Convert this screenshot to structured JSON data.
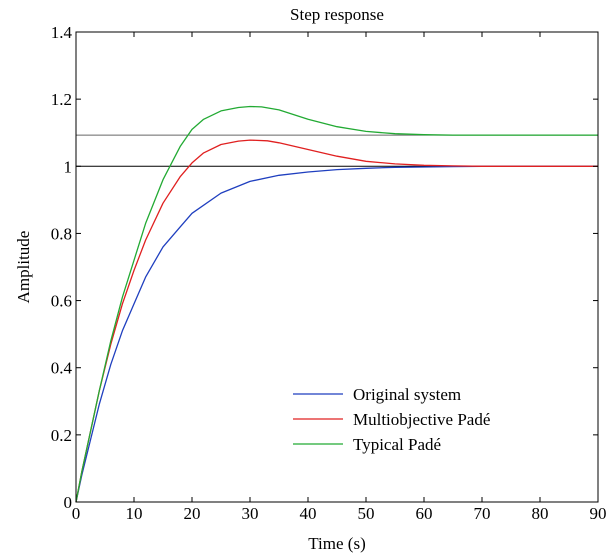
{
  "chart_data": {
    "type": "line",
    "title": "Step response",
    "xlabel": "Time (s)",
    "ylabel": "Amplitude",
    "xlim": [
      0,
      90
    ],
    "ylim": [
      0,
      1.4
    ],
    "xticks": [
      0,
      10,
      20,
      30,
      40,
      50,
      60,
      70,
      80,
      90
    ],
    "yticks": [
      0,
      0.2,
      0.4,
      0.6,
      0.8,
      1,
      1.2,
      1.4
    ],
    "xtick_labels": [
      "0",
      "10",
      "20",
      "30",
      "40",
      "50",
      "60",
      "70",
      "80",
      "90"
    ],
    "ytick_labels": [
      "0",
      "0.2",
      "0.4",
      "0.6",
      "0.8",
      "1",
      "1.2",
      "1.4"
    ],
    "grid": false,
    "legend_position": "bottom-center",
    "reference_lines": [
      {
        "y": 1.0,
        "color": "#000000"
      },
      {
        "y": 1.093,
        "color": "#666666"
      }
    ],
    "series": [
      {
        "name": "Original system",
        "color": "#1f3fbf",
        "x": [
          0,
          1,
          2,
          4,
          6,
          8,
          10,
          12,
          15,
          18,
          20,
          25,
          30,
          35,
          40,
          45,
          50,
          55,
          60,
          65,
          70,
          80,
          90
        ],
        "y": [
          0,
          0.08,
          0.15,
          0.29,
          0.41,
          0.51,
          0.59,
          0.67,
          0.76,
          0.82,
          0.86,
          0.92,
          0.955,
          0.973,
          0.983,
          0.99,
          0.994,
          0.997,
          0.998,
          0.999,
          1.0,
          1.0,
          1.0
        ]
      },
      {
        "name": "Multiobjective Padé",
        "color": "#e02020",
        "x": [
          0,
          1,
          2,
          4,
          6,
          8,
          10,
          12,
          15,
          18,
          20,
          22,
          25,
          28,
          30,
          33,
          35,
          40,
          45,
          50,
          55,
          60,
          65,
          70,
          80,
          90
        ],
        "y": [
          0,
          0.09,
          0.17,
          0.33,
          0.47,
          0.59,
          0.69,
          0.78,
          0.89,
          0.97,
          1.01,
          1.04,
          1.065,
          1.075,
          1.078,
          1.076,
          1.07,
          1.05,
          1.03,
          1.015,
          1.007,
          1.003,
          1.001,
          1.0,
          1.0,
          1.0
        ]
      },
      {
        "name": "Typical Padé",
        "color": "#22aa33",
        "x": [
          0,
          1,
          2,
          4,
          6,
          8,
          10,
          12,
          15,
          18,
          20,
          22,
          25,
          28,
          30,
          32,
          35,
          40,
          45,
          50,
          55,
          60,
          65,
          70,
          80,
          90
        ],
        "y": [
          0,
          0.09,
          0.17,
          0.33,
          0.48,
          0.61,
          0.72,
          0.83,
          0.96,
          1.06,
          1.11,
          1.14,
          1.165,
          1.175,
          1.178,
          1.177,
          1.168,
          1.14,
          1.118,
          1.104,
          1.097,
          1.094,
          1.093,
          1.093,
          1.093,
          1.093
        ]
      }
    ]
  }
}
